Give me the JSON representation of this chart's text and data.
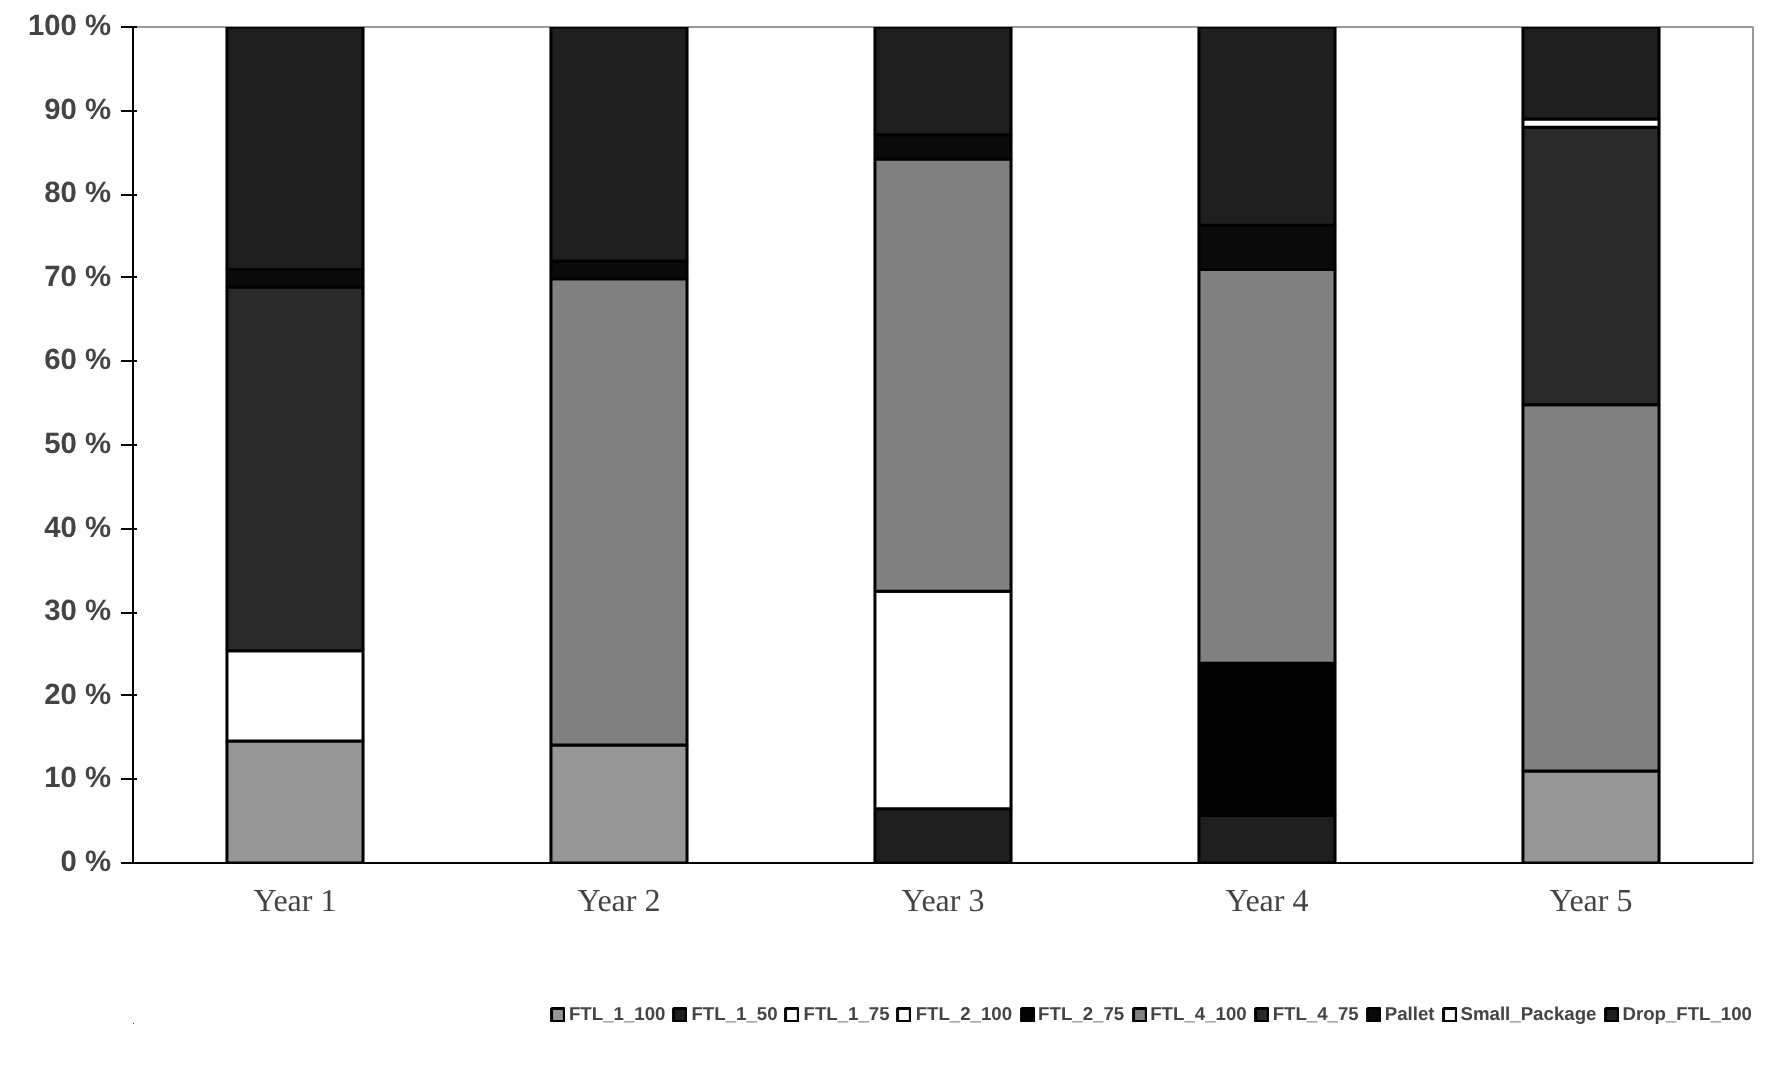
{
  "chart_data": {
    "type": "bar",
    "stacked": true,
    "categories": [
      "Year 1",
      "Year 2",
      "Year 3",
      "Year 4",
      "Year 5"
    ],
    "series": [
      {
        "name": "FTL_1_100",
        "color": "#969696",
        "values": [
          14.6,
          14.1,
          0,
          0,
          11
        ]
      },
      {
        "name": "FTL_1_50",
        "color": "#1e1e1e",
        "values": [
          0,
          0,
          6.5,
          5.7,
          0
        ]
      },
      {
        "name": "FTL_1_75",
        "color": "#ffffff",
        "values": [
          10.8,
          0,
          26,
          0,
          0
        ]
      },
      {
        "name": "FTL_2_100",
        "color": "#ffffff",
        "values": [
          0,
          0,
          0,
          0,
          0
        ]
      },
      {
        "name": "FTL_2_75",
        "color": "#000000",
        "values": [
          0,
          0,
          0,
          18.2,
          0
        ]
      },
      {
        "name": "FTL_4_100",
        "color": "#808080",
        "values": [
          0,
          55.8,
          51.7,
          47.1,
          43.8
        ]
      },
      {
        "name": "FTL_4_75",
        "color": "#2a2a2a",
        "values": [
          43.5,
          0,
          0,
          0,
          33.2
        ]
      },
      {
        "name": "Pallet",
        "color": "#0a0a0a",
        "values": [
          2.1,
          2.1,
          2.9,
          5.3,
          0
        ]
      },
      {
        "name": "Small_Package",
        "color": "#ffffff",
        "values": [
          0,
          0,
          0,
          0,
          1
        ]
      },
      {
        "name": "Drop_FTL_100",
        "color": "#1e1e1e",
        "values": [
          29,
          28,
          12.9,
          23.7,
          11
        ]
      }
    ],
    "ylim": [
      0,
      100
    ],
    "yticks": [
      {
        "value": 0,
        "label": "0 %"
      },
      {
        "value": 10,
        "label": "10 %"
      },
      {
        "value": 20,
        "label": "20 %"
      },
      {
        "value": 30,
        "label": "30 %"
      },
      {
        "value": 40,
        "label": "40 %"
      },
      {
        "value": 50,
        "label": "50 %"
      },
      {
        "value": 60,
        "label": "60 %"
      },
      {
        "value": 70,
        "label": "70 %"
      },
      {
        "value": 80,
        "label": "80 %"
      },
      {
        "value": 90,
        "label": "90 %"
      },
      {
        "value": 100,
        "label": "100 %"
      }
    ],
    "grid": false,
    "legend": "bottom"
  }
}
